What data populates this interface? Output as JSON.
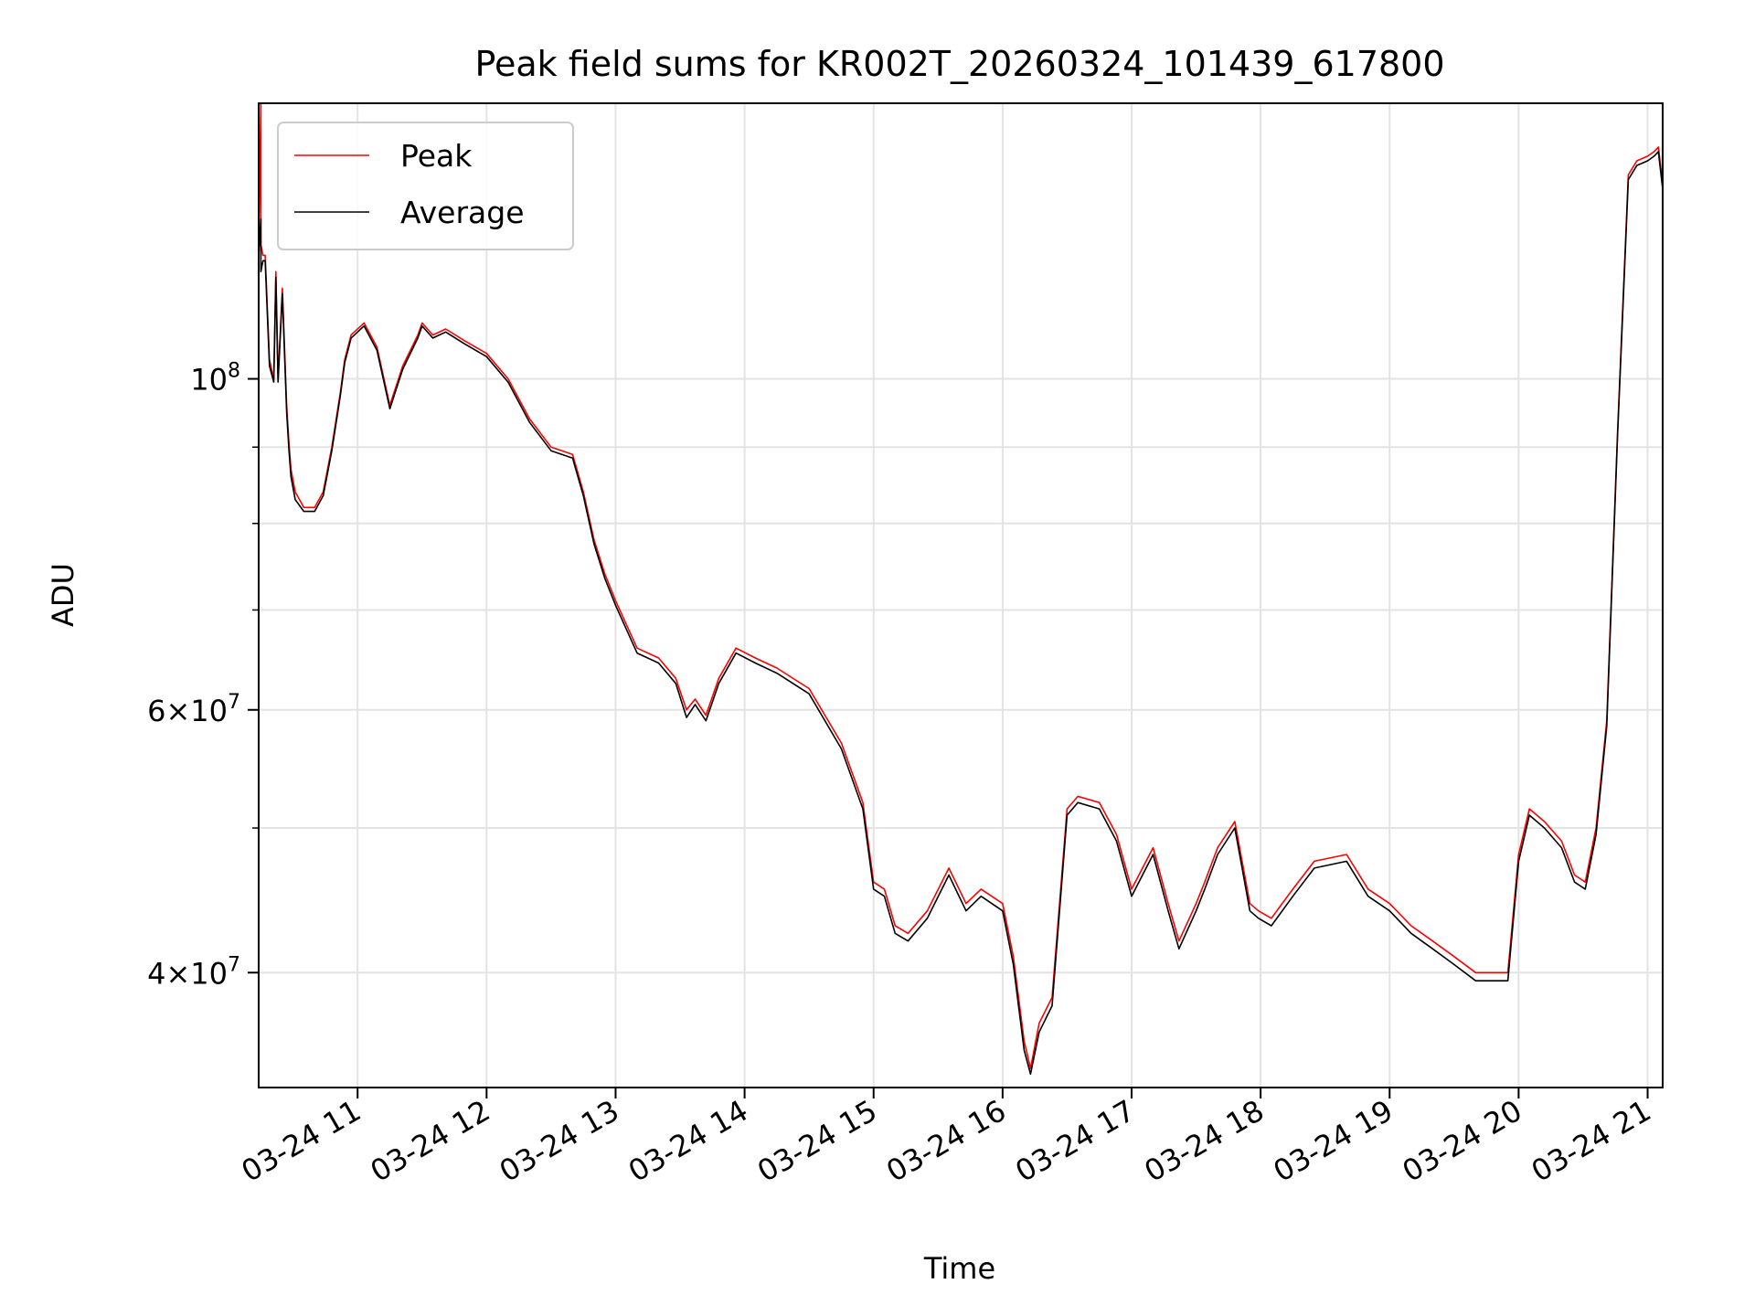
{
  "chart_data": {
    "type": "line",
    "title": "Peak field sums for KR002T_20260324_101439_617800",
    "xlabel": "Time",
    "ylabel": "ADU",
    "y_scale": "log",
    "ylim": [
      33500000,
      153000000
    ],
    "xlim": [
      "2026-03-24 10:14",
      "2026-03-24 21:07"
    ],
    "grid": true,
    "legend_position": "top-left",
    "x_tick_labels": [
      {
        "x": "2026-03-24 11:00",
        "label": "03-24 11"
      },
      {
        "x": "2026-03-24 12:00",
        "label": "03-24 12"
      },
      {
        "x": "2026-03-24 13:00",
        "label": "03-24 13"
      },
      {
        "x": "2026-03-24 14:00",
        "label": "03-24 14"
      },
      {
        "x": "2026-03-24 15:00",
        "label": "03-24 15"
      },
      {
        "x": "2026-03-24 16:00",
        "label": "03-24 16"
      },
      {
        "x": "2026-03-24 17:00",
        "label": "03-24 17"
      },
      {
        "x": "2026-03-24 18:00",
        "label": "03-24 18"
      },
      {
        "x": "2026-03-24 19:00",
        "label": "03-24 19"
      },
      {
        "x": "2026-03-24 20:00",
        "label": "03-24 20"
      },
      {
        "x": "2026-03-24 21:00",
        "label": "03-24 21"
      }
    ],
    "y_tick_labels": [
      {
        "value": 40000000,
        "mantissa": "4",
        "exp": "7"
      },
      {
        "value": 60000000,
        "mantissa": "6",
        "exp": "7"
      },
      {
        "value": 100000000,
        "mantissa": "",
        "exp": "8"
      }
    ],
    "y_minor_ticks": [
      50000000,
      70000000,
      80000000,
      90000000
    ],
    "series": [
      {
        "name": "Peak",
        "color": "#ff0000",
        "x": [
          "2026-03-24 10:14",
          "2026-03-24 10:15",
          "2026-03-24 10:15",
          "2026-03-24 10:16",
          "2026-03-24 10:17",
          "2026-03-24 10:19",
          "2026-03-24 10:21",
          "2026-03-24 10:22",
          "2026-03-24 10:23",
          "2026-03-24 10:25",
          "2026-03-24 10:27",
          "2026-03-24 10:28",
          "2026-03-24 10:29",
          "2026-03-24 10:31",
          "2026-03-24 10:35",
          "2026-03-24 10:40",
          "2026-03-24 10:44",
          "2026-03-24 10:48",
          "2026-03-24 10:52",
          "2026-03-24 10:54",
          "2026-03-24 10:57",
          "2026-03-24 11:03",
          "2026-03-24 11:09",
          "2026-03-24 11:15",
          "2026-03-24 11:21",
          "2026-03-24 11:28",
          "2026-03-24 11:30",
          "2026-03-24 11:35",
          "2026-03-24 11:41",
          "2026-03-24 11:50",
          "2026-03-24 12:00",
          "2026-03-24 12:10",
          "2026-03-24 12:20",
          "2026-03-24 12:30",
          "2026-03-24 12:40",
          "2026-03-24 12:45",
          "2026-03-24 12:50",
          "2026-03-24 12:55",
          "2026-03-24 13:00",
          "2026-03-24 13:10",
          "2026-03-24 13:20",
          "2026-03-24 13:28",
          "2026-03-24 13:33",
          "2026-03-24 13:37",
          "2026-03-24 13:42",
          "2026-03-24 13:48",
          "2026-03-24 13:56",
          "2026-03-24 14:05",
          "2026-03-24 14:15",
          "2026-03-24 14:30",
          "2026-03-24 14:45",
          "2026-03-24 14:55",
          "2026-03-24 15:00",
          "2026-03-24 15:05",
          "2026-03-24 15:10",
          "2026-03-24 15:16",
          "2026-03-24 15:25",
          "2026-03-24 15:35",
          "2026-03-24 15:43",
          "2026-03-24 15:50",
          "2026-03-24 16:00",
          "2026-03-24 16:05",
          "2026-03-24 16:10",
          "2026-03-24 16:13",
          "2026-03-24 16:17",
          "2026-03-24 16:23",
          "2026-03-24 16:30",
          "2026-03-24 16:35",
          "2026-03-24 16:45",
          "2026-03-24 16:53",
          "2026-03-24 17:00",
          "2026-03-24 17:10",
          "2026-03-24 17:17",
          "2026-03-24 17:22",
          "2026-03-24 17:30",
          "2026-03-24 17:34",
          "2026-03-24 17:40",
          "2026-03-24 17:48",
          "2026-03-24 17:55",
          "2026-03-24 17:59",
          "2026-03-24 18:05",
          "2026-03-24 18:15",
          "2026-03-24 18:25",
          "2026-03-24 18:40",
          "2026-03-24 18:50",
          "2026-03-24 19:00",
          "2026-03-24 19:10",
          "2026-03-24 19:20",
          "2026-03-24 19:30",
          "2026-03-24 19:40",
          "2026-03-24 19:50",
          "2026-03-24 19:55",
          "2026-03-24 20:00",
          "2026-03-24 20:05",
          "2026-03-24 20:12",
          "2026-03-24 20:20",
          "2026-03-24 20:26",
          "2026-03-24 20:31",
          "2026-03-24 20:36",
          "2026-03-24 20:41",
          "2026-03-24 20:46",
          "2026-03-24 20:51",
          "2026-03-24 20:55",
          "2026-03-24 21:00",
          "2026-03-24 21:03",
          "2026-03-24 21:05",
          "2026-03-24 21:07"
        ],
        "y": [
          123000000,
          153000000,
          123000000,
          121000000,
          121000000,
          103000000,
          100000000,
          118000000,
          100000000,
          115000000,
          96000000,
          91000000,
          87000000,
          84000000,
          82000000,
          82000000,
          84000000,
          90000000,
          98000000,
          103000000,
          107000000,
          109000000,
          105000000,
          96000000,
          102000000,
          107000000,
          109000000,
          107000000,
          108000000,
          106000000,
          104000000,
          100000000,
          94000000,
          90000000,
          89000000,
          84000000,
          78000000,
          74000000,
          71000000,
          66000000,
          65000000,
          63000000,
          60000000,
          61000000,
          59500000,
          63000000,
          66000000,
          65000000,
          64000000,
          62000000,
          57000000,
          52000000,
          46000000,
          45500000,
          43000000,
          42500000,
          44000000,
          47000000,
          44500000,
          45500000,
          44500000,
          41000000,
          36000000,
          34500000,
          37000000,
          38500000,
          51500000,
          52500000,
          52000000,
          49500000,
          45500000,
          48500000,
          44500000,
          42000000,
          44500000,
          46000000,
          48500000,
          50500000,
          44500000,
          44000000,
          43500000,
          45500000,
          47500000,
          48000000,
          45500000,
          44500000,
          43000000,
          42000000,
          41000000,
          40000000,
          40000000,
          40000000,
          48000000,
          51500000,
          50500000,
          49000000,
          46500000,
          46000000,
          50000000,
          59000000,
          92000000,
          137000000,
          140000000,
          141000000,
          142000000,
          143000000,
          135000000
        ]
      },
      {
        "name": "Average",
        "color": "#000000",
        "x": [
          "2026-03-24 10:14",
          "2026-03-24 10:15",
          "2026-03-24 10:15",
          "2026-03-24 10:16",
          "2026-03-24 10:17",
          "2026-03-24 10:19",
          "2026-03-24 10:21",
          "2026-03-24 10:22",
          "2026-03-24 10:23",
          "2026-03-24 10:25",
          "2026-03-24 10:27",
          "2026-03-24 10:28",
          "2026-03-24 10:29",
          "2026-03-24 10:31",
          "2026-03-24 10:35",
          "2026-03-24 10:40",
          "2026-03-24 10:44",
          "2026-03-24 10:48",
          "2026-03-24 10:52",
          "2026-03-24 10:54",
          "2026-03-24 10:57",
          "2026-03-24 11:03",
          "2026-03-24 11:09",
          "2026-03-24 11:15",
          "2026-03-24 11:21",
          "2026-03-24 11:28",
          "2026-03-24 11:30",
          "2026-03-24 11:35",
          "2026-03-24 11:41",
          "2026-03-24 11:50",
          "2026-03-24 12:00",
          "2026-03-24 12:10",
          "2026-03-24 12:20",
          "2026-03-24 12:30",
          "2026-03-24 12:40",
          "2026-03-24 12:45",
          "2026-03-24 12:50",
          "2026-03-24 12:55",
          "2026-03-24 13:00",
          "2026-03-24 13:10",
          "2026-03-24 13:20",
          "2026-03-24 13:28",
          "2026-03-24 13:33",
          "2026-03-24 13:37",
          "2026-03-24 13:42",
          "2026-03-24 13:48",
          "2026-03-24 13:56",
          "2026-03-24 14:05",
          "2026-03-24 14:15",
          "2026-03-24 14:30",
          "2026-03-24 14:45",
          "2026-03-24 14:55",
          "2026-03-24 15:00",
          "2026-03-24 15:05",
          "2026-03-24 15:10",
          "2026-03-24 15:16",
          "2026-03-24 15:25",
          "2026-03-24 15:35",
          "2026-03-24 15:43",
          "2026-03-24 15:50",
          "2026-03-24 16:00",
          "2026-03-24 16:05",
          "2026-03-24 16:10",
          "2026-03-24 16:13",
          "2026-03-24 16:17",
          "2026-03-24 16:23",
          "2026-03-24 16:30",
          "2026-03-24 16:35",
          "2026-03-24 16:45",
          "2026-03-24 16:53",
          "2026-03-24 17:00",
          "2026-03-24 17:10",
          "2026-03-24 17:17",
          "2026-03-24 17:22",
          "2026-03-24 17:30",
          "2026-03-24 17:34",
          "2026-03-24 17:40",
          "2026-03-24 17:48",
          "2026-03-24 17:55",
          "2026-03-24 17:59",
          "2026-03-24 18:05",
          "2026-03-24 18:15",
          "2026-03-24 18:25",
          "2026-03-24 18:40",
          "2026-03-24 18:50",
          "2026-03-24 19:00",
          "2026-03-24 19:10",
          "2026-03-24 19:20",
          "2026-03-24 19:30",
          "2026-03-24 19:40",
          "2026-03-24 19:50",
          "2026-03-24 19:55",
          "2026-03-24 20:00",
          "2026-03-24 20:05",
          "2026-03-24 20:12",
          "2026-03-24 20:20",
          "2026-03-24 20:26",
          "2026-03-24 20:31",
          "2026-03-24 20:36",
          "2026-03-24 20:41",
          "2026-03-24 20:46",
          "2026-03-24 20:51",
          "2026-03-24 20:55",
          "2026-03-24 21:00",
          "2026-03-24 21:03",
          "2026-03-24 21:05",
          "2026-03-24 21:07"
        ],
        "y": [
          121000000,
          128000000,
          118000000,
          120000000,
          120000000,
          102000000,
          99500000,
          117000000,
          99500000,
          114000000,
          95000000,
          90000000,
          86000000,
          83000000,
          81500000,
          81500000,
          83500000,
          89500000,
          97500000,
          102500000,
          106500000,
          108500000,
          104500000,
          95500000,
          101500000,
          106500000,
          108500000,
          106500000,
          107500000,
          105500000,
          103500000,
          99500000,
          93500000,
          89500000,
          88500000,
          83500000,
          77500000,
          73500000,
          70500000,
          65500000,
          64500000,
          62500000,
          59300000,
          60500000,
          59000000,
          62500000,
          65500000,
          64500000,
          63500000,
          61500000,
          56500000,
          51500000,
          45500000,
          45000000,
          42500000,
          42000000,
          43500000,
          46500000,
          44000000,
          45000000,
          44000000,
          40500000,
          35500000,
          34200000,
          36500000,
          38000000,
          51000000,
          52000000,
          51500000,
          49000000,
          45000000,
          48000000,
          44000000,
          41500000,
          44000000,
          45500000,
          48000000,
          50000000,
          44000000,
          43500000,
          43000000,
          45000000,
          47000000,
          47500000,
          45000000,
          44000000,
          42500000,
          41500000,
          40500000,
          39500000,
          39500000,
          39500000,
          47500000,
          51000000,
          50000000,
          48500000,
          46000000,
          45500000,
          49500000,
          58500000,
          91500000,
          136000000,
          139000000,
          140000000,
          141000000,
          142000000,
          134000000
        ]
      }
    ]
  }
}
